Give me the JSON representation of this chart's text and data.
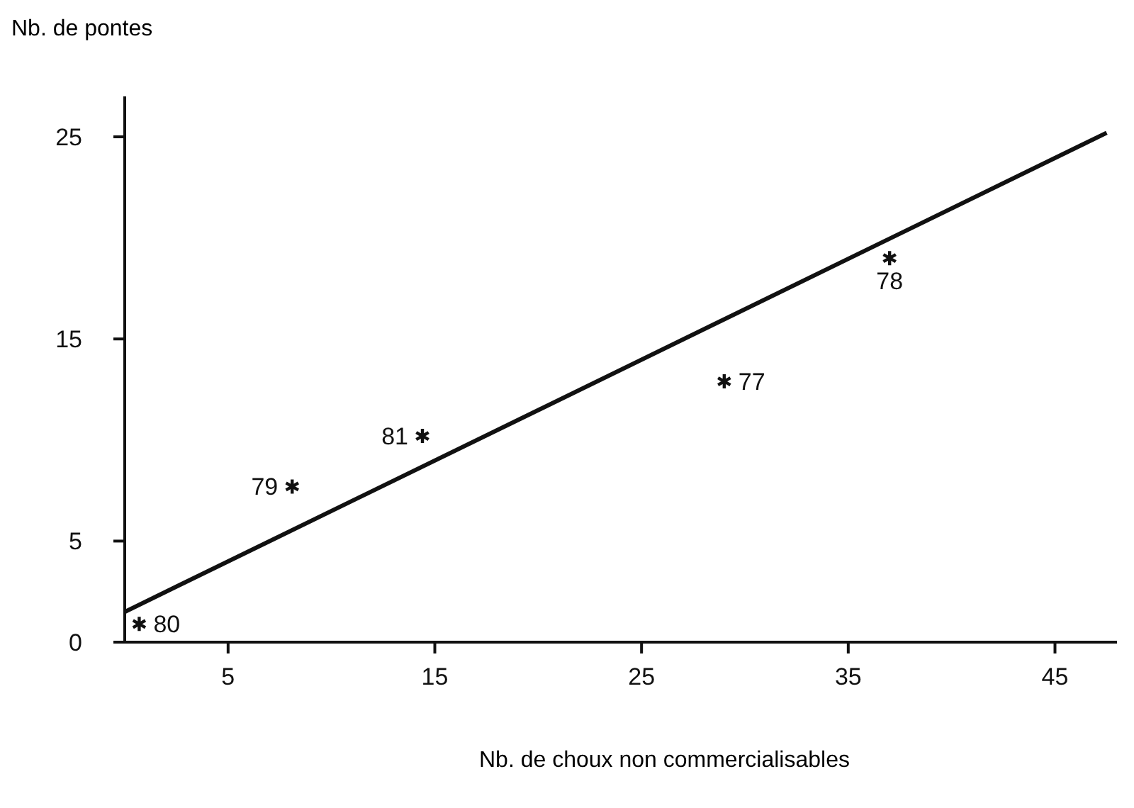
{
  "chart_data": {
    "type": "scatter",
    "xlabel": "Nb. de choux non commercialisables",
    "ylabel": "Nb. de pontes",
    "xlim": [
      0,
      48
    ],
    "xticks": [
      5,
      15,
      25,
      35,
      45
    ],
    "ylim": [
      0,
      27
    ],
    "yticks": [
      0,
      5,
      15,
      25
    ],
    "grid": false,
    "legend": false,
    "marker": "cross",
    "series": [
      {
        "color": "#111111",
        "x": [
          0.7,
          8.1,
          14.4,
          29.0,
          37.0
        ],
        "values": [
          0.9,
          7.7,
          10.2,
          12.9,
          19.0
        ]
      },
      {
        "type": "line",
        "color": "#111111",
        "x": [
          0,
          47.5
        ],
        "values": [
          1.5,
          25.2
        ],
        "marker": "none",
        "line_style": "solid"
      }
    ],
    "annotations": [
      {
        "text": "80",
        "x": 0.7,
        "y": 0.9
      },
      {
        "text": "79",
        "x": 8.1,
        "y": 7.7
      },
      {
        "text": "81",
        "x": 14.4,
        "y": 10.2
      },
      {
        "text": "77",
        "x": 29.0,
        "y": 12.9
      },
      {
        "text": "78",
        "x": 37.0,
        "y": 19.0
      }
    ]
  }
}
